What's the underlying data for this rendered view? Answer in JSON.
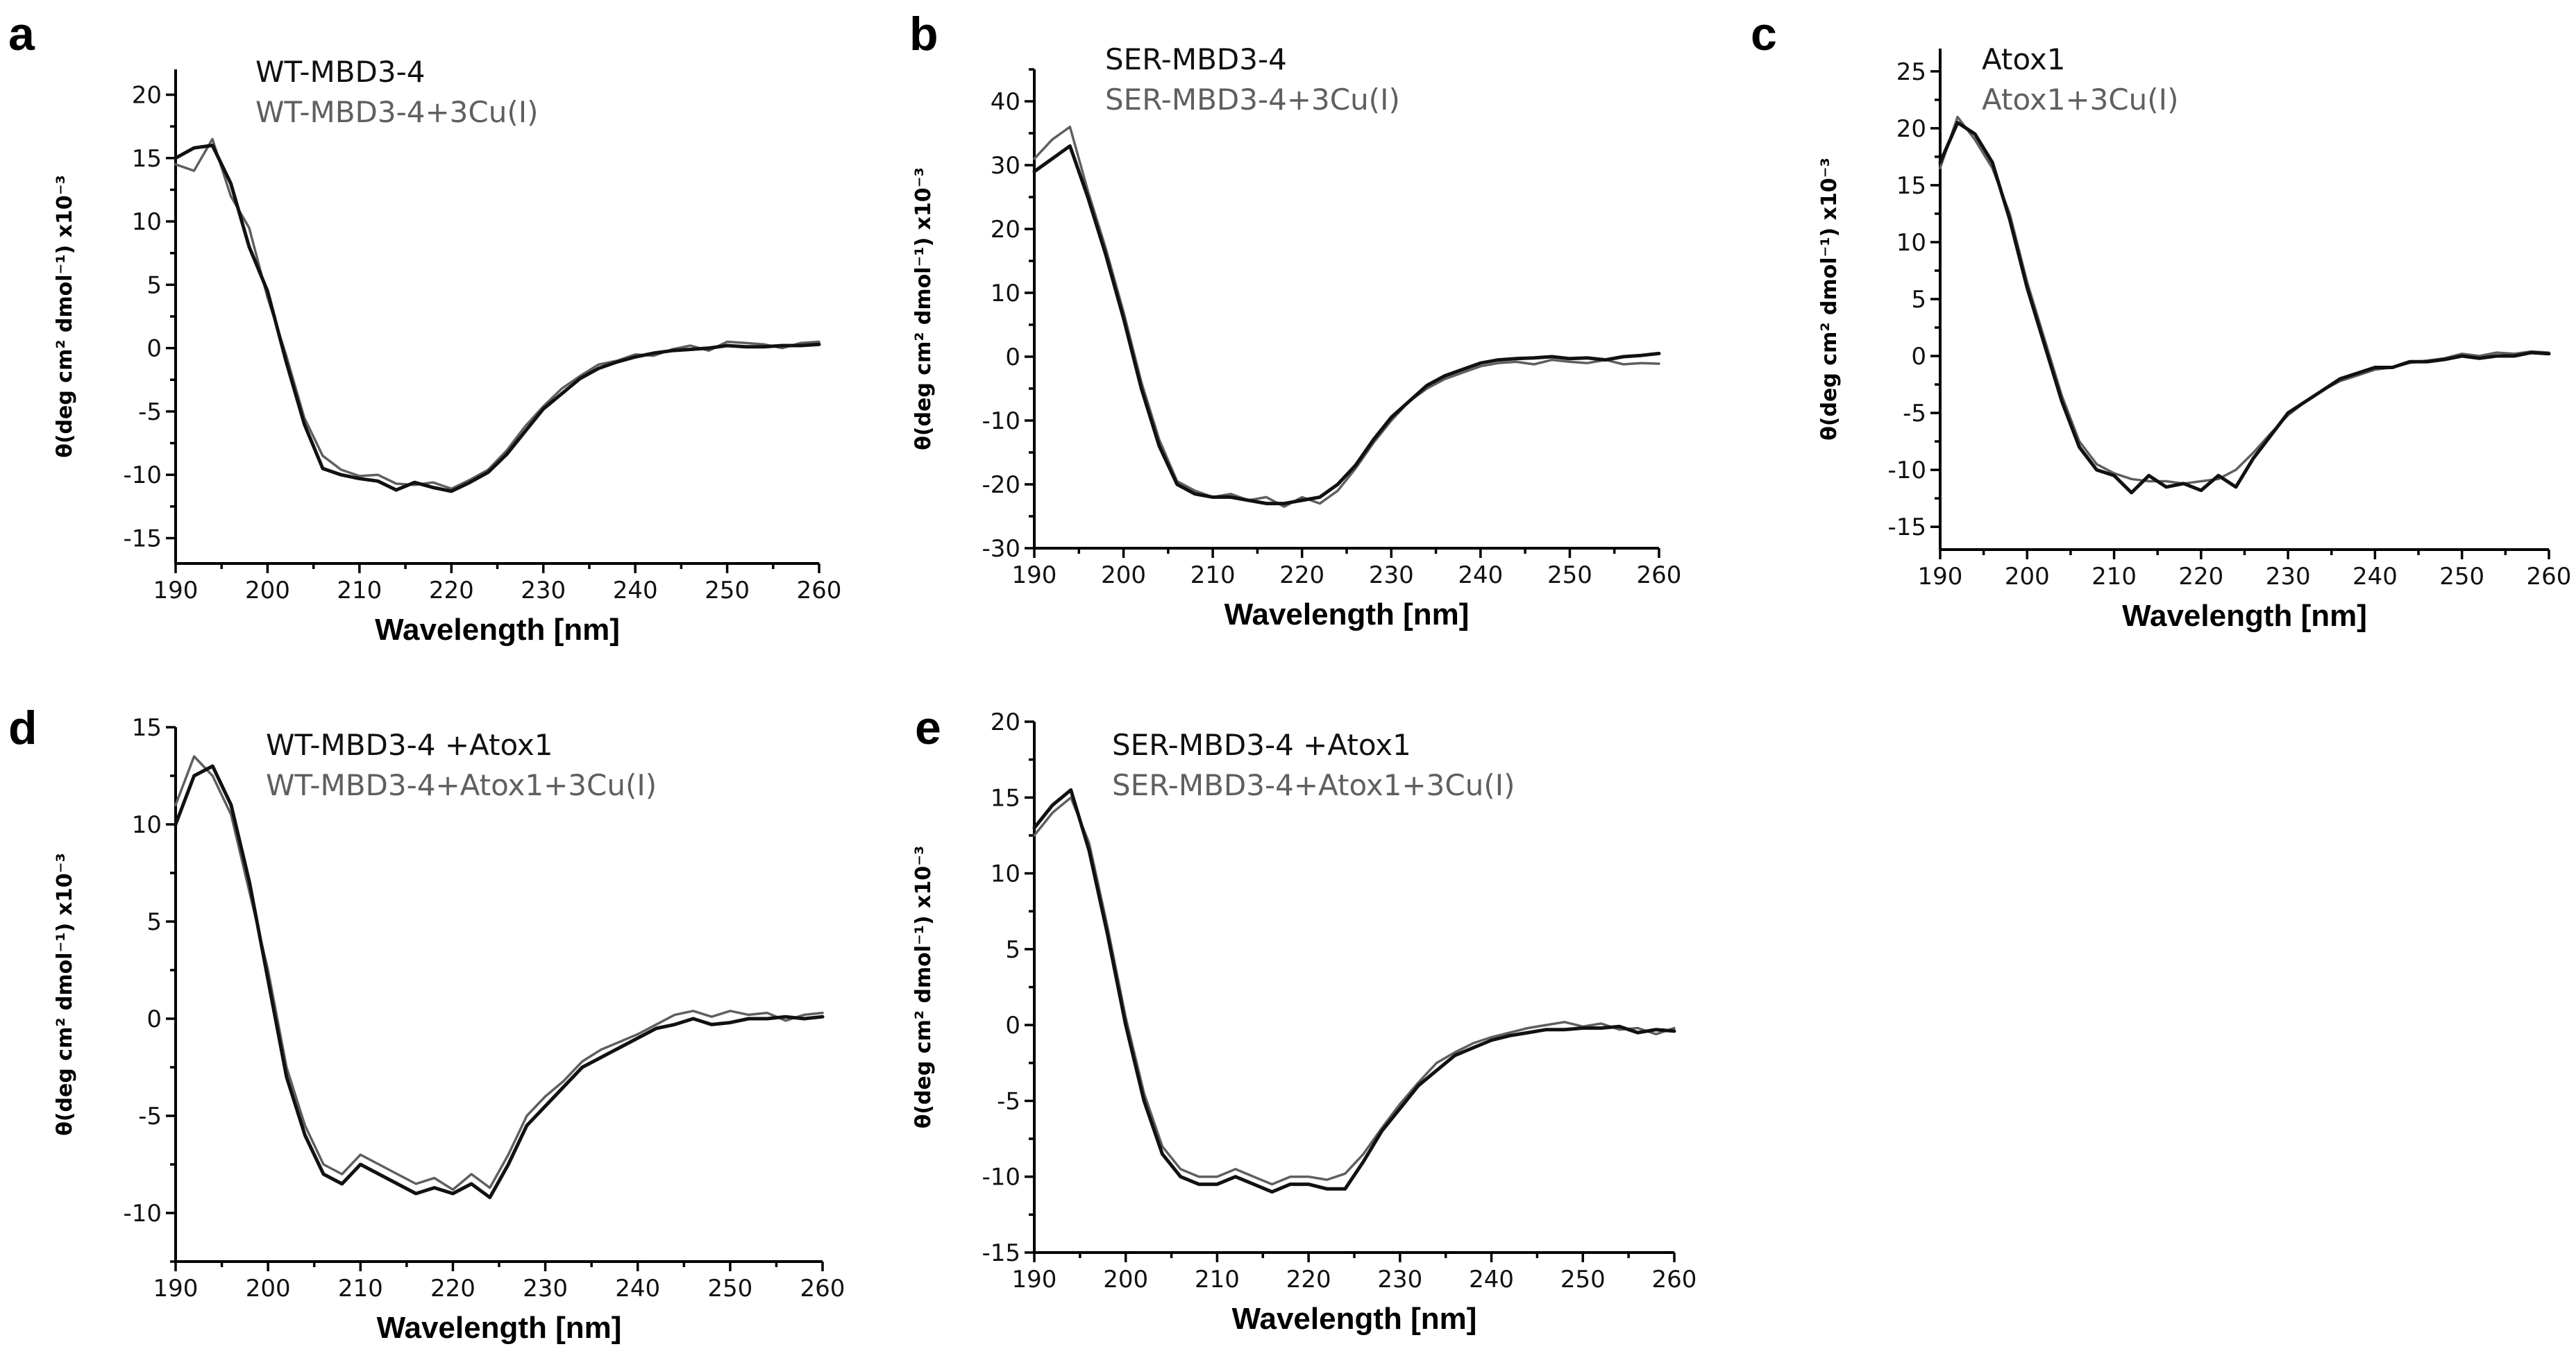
{
  "figure": {
    "colors": {
      "native": "#111111",
      "copper": "#5f5f5f",
      "axis": "#000000"
    }
  },
  "chart_data": [
    {
      "panel": "a",
      "type": "line",
      "xlabel": "Wavelength [nm]",
      "ylabel": "θ(deg cm² dmol⁻¹) x10⁻³",
      "xlim": [
        190,
        260
      ],
      "ylim": [
        -17,
        22
      ],
      "xticks": [
        190,
        200,
        210,
        220,
        230,
        240,
        250,
        260
      ],
      "yticks": [
        -15,
        -10,
        -5,
        0,
        5,
        10,
        15,
        20
      ],
      "xtick_labels": [
        "190",
        "200",
        "210",
        "220",
        "230",
        "240",
        "250",
        "260"
      ],
      "ytick_labels": [
        "-15",
        "-10",
        "-5",
        "0",
        "5",
        "10",
        "15",
        "20"
      ],
      "legend": [
        "WT-MBD3-4",
        "WT-MBD3-4+3Cu(I)"
      ],
      "x": [
        190,
        192,
        194,
        196,
        198,
        200,
        202,
        204,
        206,
        208,
        210,
        212,
        214,
        216,
        218,
        220,
        222,
        224,
        226,
        228,
        230,
        232,
        234,
        236,
        238,
        240,
        242,
        244,
        246,
        248,
        250,
        252,
        254,
        256,
        258,
        260
      ],
      "series": [
        {
          "name": "WT-MBD3-4",
          "values": [
            15,
            15.8,
            16,
            13,
            8,
            4.5,
            -1,
            -6,
            -9.5,
            -10,
            -10.3,
            -10.5,
            -11.2,
            -10.6,
            -11,
            -11.3,
            -10.6,
            -9.8,
            -8.4,
            -6.6,
            -4.8,
            -3.6,
            -2.4,
            -1.6,
            -1.1,
            -0.7,
            -0.4,
            -0.2,
            -0.1,
            0,
            0.2,
            0.1,
            0.1,
            0.2,
            0.2,
            0.3
          ]
        },
        {
          "name": "WT-MBD3-4+3Cu(I)",
          "values": [
            14.5,
            14,
            16.5,
            12,
            9.5,
            4,
            -0.5,
            -5.5,
            -8.5,
            -9.6,
            -10.1,
            -10,
            -10.7,
            -10.8,
            -10.6,
            -11.1,
            -10.4,
            -9.6,
            -8.1,
            -6.2,
            -4.6,
            -3.2,
            -2.2,
            -1.3,
            -1,
            -0.5,
            -0.6,
            -0.1,
            0.2,
            -0.2,
            0.5,
            0.4,
            0.3,
            0,
            0.4,
            0.5
          ]
        }
      ]
    },
    {
      "panel": "b",
      "type": "line",
      "xlabel": "Wavelength [nm]",
      "ylabel": "θ(deg cm² dmol⁻¹) x10⁻³",
      "xlim": [
        190,
        260
      ],
      "ylim": [
        -30,
        45
      ],
      "xticks": [
        190,
        200,
        210,
        220,
        230,
        240,
        250,
        260
      ],
      "yticks": [
        -30,
        -20,
        -10,
        0,
        10,
        20,
        30,
        40
      ],
      "xtick_labels": [
        "190",
        "200",
        "210",
        "220",
        "230",
        "240",
        "250",
        "260"
      ],
      "ytick_labels": [
        "-30",
        "-20",
        "-10",
        "0",
        "10",
        "20",
        "30",
        "40"
      ],
      "legend": [
        "SER-MBD3-4",
        "SER-MBD3-4+3Cu(I)"
      ],
      "x": [
        190,
        192,
        194,
        196,
        198,
        200,
        202,
        204,
        206,
        208,
        210,
        212,
        214,
        216,
        218,
        220,
        222,
        224,
        226,
        228,
        230,
        232,
        234,
        236,
        238,
        240,
        242,
        244,
        246,
        248,
        250,
        252,
        254,
        256,
        258,
        260
      ],
      "series": [
        {
          "name": "SER-MBD3-4",
          "values": [
            29,
            31,
            33,
            25,
            16,
            6,
            -5,
            -14,
            -20,
            -21.5,
            -22,
            -22,
            -22.5,
            -23,
            -23,
            -22.5,
            -22,
            -20,
            -17,
            -13,
            -9.5,
            -7,
            -4.5,
            -3,
            -2,
            -1,
            -0.5,
            -0.3,
            -0.2,
            0,
            -0.3,
            -0.2,
            -0.5,
            0,
            0.2,
            0.5
          ]
        },
        {
          "name": "SER-MBD3-4+3Cu(I)",
          "values": [
            31,
            34,
            36,
            26,
            17,
            7,
            -4,
            -13,
            -19.5,
            -21,
            -22,
            -21.5,
            -22.5,
            -22,
            -23.5,
            -22,
            -23,
            -21,
            -17.5,
            -13.5,
            -10,
            -7,
            -5,
            -3.5,
            -2.5,
            -1.5,
            -1,
            -0.8,
            -1.2,
            -0.5,
            -0.8,
            -1,
            -0.5,
            -1.2,
            -1,
            -1.1
          ]
        }
      ]
    },
    {
      "panel": "c",
      "type": "line",
      "xlabel": "Wavelength [nm]",
      "ylabel": "θ(deg cm² dmol⁻¹) x10⁻³",
      "xlim": [
        190,
        260
      ],
      "ylim": [
        -17,
        27
      ],
      "xticks": [
        190,
        200,
        210,
        220,
        230,
        240,
        250,
        260
      ],
      "yticks": [
        -15,
        -10,
        -5,
        0,
        5,
        10,
        15,
        20,
        25
      ],
      "xtick_labels": [
        "190",
        "200",
        "210",
        "220",
        "230",
        "240",
        "250",
        "260"
      ],
      "ytick_labels": [
        "-15",
        "-10",
        "-5",
        "0",
        "5",
        "10",
        "15",
        "20",
        "25"
      ],
      "legend": [
        "Atox1",
        "Atox1+3Cu(I)"
      ],
      "x": [
        190,
        192,
        194,
        196,
        198,
        200,
        202,
        204,
        206,
        208,
        210,
        212,
        214,
        216,
        218,
        220,
        222,
        224,
        226,
        228,
        230,
        232,
        234,
        236,
        238,
        240,
        242,
        244,
        246,
        248,
        250,
        252,
        254,
        256,
        258,
        260
      ],
      "series": [
        {
          "name": "Atox1",
          "values": [
            17,
            20.5,
            19.5,
            17,
            12,
            6,
            1,
            -4,
            -8,
            -10,
            -10.5,
            -12,
            -10.5,
            -11.5,
            -11.2,
            -11.8,
            -10.5,
            -11.5,
            -9,
            -7,
            -5,
            -4,
            -3,
            -2,
            -1.5,
            -1,
            -1,
            -0.5,
            -0.5,
            -0.3,
            0,
            -0.2,
            0,
            0,
            0.3,
            0.2
          ]
        },
        {
          "name": "Atox1+3Cu(I)",
          "values": [
            16.5,
            21,
            19,
            16.5,
            12.5,
            6.5,
            1.5,
            -3.5,
            -7.5,
            -9.5,
            -10.3,
            -10.8,
            -11,
            -11,
            -11.2,
            -11,
            -10.8,
            -10,
            -8.5,
            -6.8,
            -5.2,
            -4,
            -3,
            -2.2,
            -1.7,
            -1.2,
            -1,
            -0.6,
            -0.4,
            -0.2,
            0.2,
            0,
            0.3,
            0.2,
            0.4,
            0.3
          ]
        }
      ]
    },
    {
      "panel": "d",
      "type": "line",
      "xlabel": "Wavelength [nm]",
      "ylabel": "θ(deg cm² dmol⁻¹) x10⁻³",
      "xlim": [
        190,
        260
      ],
      "ylim": [
        -12.5,
        15
      ],
      "xticks": [
        190,
        200,
        210,
        220,
        230,
        240,
        250,
        260
      ],
      "yticks": [
        -10,
        -5,
        0,
        5,
        10,
        15
      ],
      "xtick_labels": [
        "190",
        "200",
        "210",
        "220",
        "230",
        "240",
        "250",
        "260"
      ],
      "ytick_labels": [
        "-10",
        "-5",
        "0",
        "5",
        "10",
        "15"
      ],
      "legend": [
        "WT-MBD3-4 +Atox1",
        "WT-MBD3-4+Atox1+3Cu(I)"
      ],
      "x": [
        190,
        192,
        194,
        196,
        198,
        200,
        202,
        204,
        206,
        208,
        210,
        212,
        214,
        216,
        218,
        220,
        222,
        224,
        226,
        228,
        230,
        232,
        234,
        236,
        238,
        240,
        242,
        244,
        246,
        248,
        250,
        252,
        254,
        256,
        258,
        260
      ],
      "series": [
        {
          "name": "WT-MBD3-4 +Atox1",
          "values": [
            10,
            12.5,
            13,
            11,
            7,
            2,
            -3,
            -6,
            -8,
            -8.5,
            -7.5,
            -8,
            -8.5,
            -9,
            -8.7,
            -9,
            -8.5,
            -9.2,
            -7.5,
            -5.5,
            -4.5,
            -3.5,
            -2.5,
            -2,
            -1.5,
            -1,
            -0.5,
            -0.3,
            0,
            -0.3,
            -0.2,
            0,
            0,
            0.1,
            0,
            0.1
          ]
        },
        {
          "name": "WT-MBD3-4+Atox1+3Cu(I)",
          "values": [
            11,
            13.5,
            12.5,
            10.5,
            6.5,
            2.5,
            -2.5,
            -5.5,
            -7.5,
            -8,
            -7,
            -7.5,
            -8,
            -8.5,
            -8.2,
            -8.8,
            -8,
            -8.7,
            -7,
            -5,
            -4,
            -3.2,
            -2.2,
            -1.6,
            -1.2,
            -0.8,
            -0.3,
            0.2,
            0.4,
            0.1,
            0.4,
            0.2,
            0.3,
            -0.1,
            0.2,
            0.3
          ]
        }
      ]
    },
    {
      "panel": "e",
      "type": "line",
      "xlabel": "Wavelength [nm]",
      "ylabel": "θ(deg cm² dmol⁻¹) x10⁻³",
      "xlim": [
        190,
        260
      ],
      "ylim": [
        -15,
        20
      ],
      "xticks": [
        190,
        200,
        210,
        220,
        230,
        240,
        250,
        260
      ],
      "yticks": [
        -15,
        -10,
        -5,
        0,
        5,
        10,
        15,
        20
      ],
      "xtick_labels": [
        "190",
        "200",
        "210",
        "220",
        "230",
        "240",
        "250",
        "260"
      ],
      "ytick_labels": [
        "-15",
        "-10",
        "-5",
        "0",
        "5",
        "10",
        "15",
        "20"
      ],
      "legend": [
        "SER-MBD3-4 +Atox1",
        "SER-MBD3-4+Atox1+3Cu(I)"
      ],
      "x": [
        190,
        192,
        194,
        196,
        198,
        200,
        202,
        204,
        206,
        208,
        210,
        212,
        214,
        216,
        218,
        220,
        222,
        224,
        226,
        228,
        230,
        232,
        234,
        236,
        238,
        240,
        242,
        244,
        246,
        248,
        250,
        252,
        254,
        256,
        258,
        260
      ],
      "series": [
        {
          "name": "SER-MBD3-4 +Atox1",
          "values": [
            13,
            14.5,
            15.5,
            11.5,
            6,
            0,
            -5,
            -8.5,
            -10,
            -10.5,
            -10.5,
            -10,
            -10.5,
            -11,
            -10.5,
            -10.5,
            -10.8,
            -10.8,
            -9,
            -7,
            -5.5,
            -4,
            -3,
            -2,
            -1.5,
            -1,
            -0.7,
            -0.5,
            -0.3,
            -0.3,
            -0.2,
            -0.2,
            -0.1,
            -0.5,
            -0.3,
            -0.4
          ]
        },
        {
          "name": "SER-MBD3-4+Atox1+3Cu(I)",
          "values": [
            12.5,
            14,
            15,
            12,
            6.5,
            0.5,
            -4.5,
            -8,
            -9.5,
            -10,
            -10,
            -9.5,
            -10,
            -10.5,
            -10,
            -10,
            -10.2,
            -9.8,
            -8.5,
            -6.8,
            -5.2,
            -3.8,
            -2.5,
            -1.8,
            -1.2,
            -0.8,
            -0.5,
            -0.2,
            0,
            0.2,
            -0.1,
            0.1,
            -0.3,
            -0.2,
            -0.6,
            -0.2
          ]
        }
      ]
    }
  ]
}
